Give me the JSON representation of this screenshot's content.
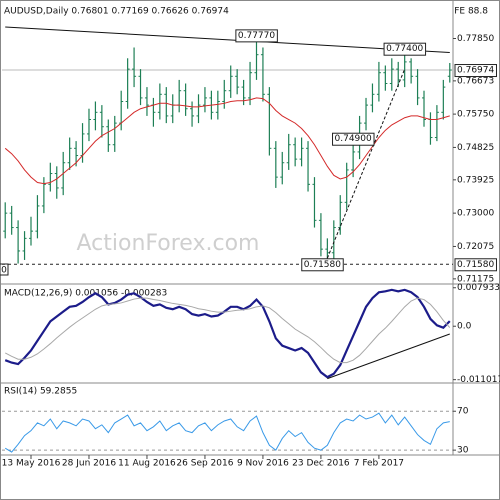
{
  "chart_data": [
    {
      "type": "ohlc",
      "title": "AUDUSD,Daily  0.76801 0.77169 0.76626 0.76974",
      "corner_label": "FE 88.8",
      "fib_label": "0",
      "watermark": "ActionForex.com",
      "color": "#1d7f55",
      "categories": [
        null,
        null,
        null,
        null,
        "13 May 2016",
        null,
        null,
        null,
        null,
        null,
        null,
        null,
        null,
        "28 Jun 2016",
        null,
        null,
        null,
        null,
        null,
        null,
        null,
        null,
        "11 Aug 2016",
        null,
        null,
        null,
        null,
        null,
        null,
        null,
        null,
        "26 Sep 2016",
        null,
        null,
        null,
        null,
        null,
        null,
        null,
        null,
        "9 Nov 2016",
        null,
        null,
        null,
        null,
        null,
        null,
        null,
        null,
        "23 Dec 2016",
        null,
        null,
        null,
        null,
        null,
        null,
        null,
        null,
        "7 Feb 2017",
        null,
        null,
        null,
        null,
        null,
        null,
        null,
        null,
        null,
        null,
        null
      ],
      "open": [
        0.725,
        0.73,
        0.726,
        0.7195,
        0.723,
        0.725,
        0.732,
        0.738,
        0.741,
        0.737,
        0.744,
        0.748,
        0.746,
        0.752,
        0.756,
        0.758,
        0.754,
        0.749,
        0.755,
        0.761,
        0.77,
        0.768,
        0.762,
        0.76,
        0.758,
        0.763,
        0.757,
        0.76,
        0.764,
        0.759,
        0.757,
        0.76,
        0.762,
        0.758,
        0.761,
        0.764,
        0.768,
        0.765,
        0.762,
        0.769,
        0.774,
        0.763,
        0.748,
        0.74,
        0.744,
        0.749,
        0.745,
        0.748,
        0.738,
        0.728,
        0.72,
        0.719,
        0.726,
        0.733,
        0.742,
        0.747,
        0.755,
        0.76,
        0.763,
        0.769,
        0.766,
        0.77,
        0.767,
        0.772,
        0.768,
        0.762,
        0.756,
        0.751,
        0.758,
        0.76801
      ],
      "high": [
        0.733,
        0.732,
        0.728,
        0.725,
        0.729,
        0.735,
        0.74,
        0.744,
        0.743,
        0.747,
        0.751,
        0.75,
        0.755,
        0.759,
        0.761,
        0.76,
        0.756,
        0.757,
        0.764,
        0.773,
        0.776,
        0.77,
        0.765,
        0.762,
        0.766,
        0.765,
        0.763,
        0.767,
        0.766,
        0.761,
        0.763,
        0.765,
        0.764,
        0.764,
        0.767,
        0.771,
        0.77,
        0.767,
        0.772,
        0.7777,
        0.776,
        0.765,
        0.75,
        0.747,
        0.752,
        0.751,
        0.751,
        0.75,
        0.74,
        0.73,
        0.723,
        0.728,
        0.735,
        0.744,
        0.749,
        0.757,
        0.762,
        0.766,
        0.772,
        0.771,
        0.773,
        0.772,
        0.774,
        0.773,
        0.77,
        0.764,
        0.758,
        0.76,
        0.767,
        0.77169
      ],
      "low": [
        0.723,
        0.724,
        0.716,
        0.717,
        0.721,
        0.723,
        0.73,
        0.736,
        0.734,
        0.735,
        0.742,
        0.743,
        0.744,
        0.75,
        0.753,
        0.751,
        0.747,
        0.747,
        0.753,
        0.759,
        0.765,
        0.76,
        0.757,
        0.754,
        0.756,
        0.755,
        0.755,
        0.758,
        0.757,
        0.754,
        0.755,
        0.758,
        0.756,
        0.756,
        0.759,
        0.762,
        0.763,
        0.76,
        0.76,
        0.767,
        0.761,
        0.746,
        0.737,
        0.738,
        0.742,
        0.743,
        0.743,
        0.736,
        0.726,
        0.718,
        0.7158,
        0.717,
        0.724,
        0.731,
        0.74,
        0.745,
        0.753,
        0.758,
        0.761,
        0.764,
        0.764,
        0.765,
        0.765,
        0.766,
        0.76,
        0.754,
        0.749,
        0.75,
        0.756,
        0.76626
      ],
      "close": [
        0.73,
        0.726,
        0.7195,
        0.723,
        0.725,
        0.732,
        0.738,
        0.741,
        0.737,
        0.744,
        0.748,
        0.746,
        0.752,
        0.756,
        0.758,
        0.754,
        0.749,
        0.755,
        0.761,
        0.77,
        0.768,
        0.762,
        0.76,
        0.758,
        0.763,
        0.757,
        0.76,
        0.764,
        0.759,
        0.757,
        0.76,
        0.762,
        0.758,
        0.761,
        0.764,
        0.768,
        0.765,
        0.762,
        0.769,
        0.774,
        0.763,
        0.748,
        0.74,
        0.744,
        0.749,
        0.745,
        0.748,
        0.738,
        0.728,
        0.72,
        0.719,
        0.726,
        0.733,
        0.742,
        0.747,
        0.755,
        0.76,
        0.763,
        0.769,
        0.766,
        0.77,
        0.767,
        0.772,
        0.768,
        0.762,
        0.756,
        0.751,
        0.758,
        0.765,
        0.76974
      ],
      "ma": {
        "color": "#d42a2a",
        "values": [
          0.748,
          0.7465,
          0.7445,
          0.742,
          0.74,
          0.7385,
          0.7382,
          0.7385,
          0.7395,
          0.741,
          0.7425,
          0.744,
          0.746,
          0.748,
          0.75,
          0.7515,
          0.7525,
          0.7535,
          0.755,
          0.7565,
          0.758,
          0.759,
          0.7595,
          0.76,
          0.7605,
          0.7605,
          0.76,
          0.76,
          0.7598,
          0.7595,
          0.7595,
          0.7598,
          0.76,
          0.7602,
          0.7605,
          0.761,
          0.7612,
          0.7612,
          0.7615,
          0.762,
          0.7618,
          0.7605,
          0.7585,
          0.757,
          0.756,
          0.755,
          0.7535,
          0.7515,
          0.749,
          0.746,
          0.743,
          0.7405,
          0.7395,
          0.74,
          0.7415,
          0.7435,
          0.746,
          0.7485,
          0.751,
          0.753,
          0.7545,
          0.7555,
          0.7565,
          0.757,
          0.757,
          0.7565,
          0.756,
          0.756,
          0.7565,
          0.757
        ]
      },
      "ylim": [
        0.7106,
        0.7878
      ],
      "yticks": [
        {
          "value": 0.7785,
          "label": "0.77850"
        },
        {
          "value": 0.76673,
          "label": "0.76673"
        },
        {
          "value": 0.7575,
          "label": "0.75750"
        },
        {
          "value": 0.74825,
          "label": "0.74825"
        },
        {
          "value": 0.73925,
          "label": "0.73925"
        },
        {
          "value": 0.73,
          "label": "0.73000"
        },
        {
          "value": 0.72075,
          "label": "0.72075"
        },
        {
          "value": 0.71175,
          "label": "0.71175"
        }
      ],
      "last_price": {
        "value": 0.76974,
        "label": "0.76974"
      },
      "level": {
        "value": 0.7158,
        "label": "0.71580"
      },
      "annotations": [
        {
          "value": 0.7777,
          "label": "0.77770"
        },
        {
          "value": 0.774,
          "label": "0.77400"
        },
        {
          "value": 0.749,
          "label": "0.74900"
        }
      ],
      "trendlines": [
        {
          "x": [
            0,
            69
          ],
          "y": [
            0.7817,
            0.7746
          ],
          "dashed": false
        },
        {
          "x": [
            50,
            62
          ],
          "y": [
            0.7175,
            0.77
          ],
          "dashed": true
        }
      ]
    },
    {
      "type": "macd",
      "title": "MACD(12,26,9) 0.001056 -0.000283",
      "series": [
        {
          "color": "#1c1c8a",
          "values": [
            -0.007,
            -0.0075,
            -0.0078,
            -0.0065,
            -0.005,
            -0.003,
            -0.001,
            0.001,
            0.002,
            0.003,
            0.004,
            0.0042,
            0.005,
            0.006,
            0.0068,
            0.006,
            0.0045,
            0.0048,
            0.0055,
            0.0065,
            0.0068,
            0.006,
            0.005,
            0.0042,
            0.0045,
            0.0038,
            0.0035,
            0.004,
            0.0035,
            0.0025,
            0.0022,
            0.0025,
            0.002,
            0.0022,
            0.003,
            0.004,
            0.004,
            0.0035,
            0.0042,
            0.0055,
            0.004,
            0.001,
            -0.0025,
            -0.004,
            -0.0045,
            -0.005,
            -0.0045,
            -0.0055,
            -0.0075,
            -0.0095,
            -0.0105,
            -0.0098,
            -0.008,
            -0.005,
            -0.002,
            0.001,
            0.004,
            0.0058,
            0.007,
            0.0072,
            0.0075,
            0.0072,
            0.0075,
            0.007,
            0.006,
            0.004,
            0.0015,
            0.0002,
            -0.0003,
            0.001056
          ]
        },
        {
          "color": "#a8a8a8",
          "values": [
            -0.0055,
            -0.0062,
            -0.0068,
            -0.0068,
            -0.0064,
            -0.0057,
            -0.0047,
            -0.0036,
            -0.0024,
            -0.0013,
            -0.0002,
            0.0008,
            0.0017,
            0.0026,
            0.0035,
            0.0042,
            0.0045,
            0.0046,
            0.0048,
            0.0052,
            0.0056,
            0.0058,
            0.0058,
            0.0055,
            0.0053,
            0.005,
            0.0047,
            0.0045,
            0.0043,
            0.004,
            0.0036,
            0.0034,
            0.0031,
            0.0029,
            0.0029,
            0.0031,
            0.0033,
            0.0034,
            0.0036,
            0.004,
            0.0042,
            0.0038,
            0.0028,
            0.0016,
            0.0005,
            -0.0006,
            -0.0014,
            -0.0022,
            -0.0032,
            -0.0044,
            -0.0057,
            -0.0068,
            -0.0075,
            -0.0075,
            -0.007,
            -0.006,
            -0.0046,
            -0.0031,
            -0.0016,
            -0.0004,
            0.001,
            0.0025,
            0.004,
            0.0052,
            0.0058,
            0.0055,
            0.0045,
            0.003,
            0.0012,
            -0.000283
          ]
        }
      ],
      "ylim": [
        -0.0115,
        0.0085
      ],
      "yticks": [
        0.007933,
        {
          "value": 0,
          "label": "0.0"
        },
        -0.011017
      ],
      "trendlines": [
        {
          "x": [
            50,
            69
          ],
          "y": [
            -0.0108,
            -0.0016
          ],
          "dashed": false
        }
      ]
    },
    {
      "type": "rsi",
      "title": "RSI(14) 59.2855",
      "color": "#3a9ae8",
      "values": [
        32,
        28,
        36,
        45,
        50,
        58,
        55,
        62,
        52,
        60,
        58,
        55,
        62,
        60,
        52,
        56,
        48,
        58,
        62,
        66,
        55,
        58,
        50,
        54,
        60,
        50,
        55,
        58,
        50,
        48,
        55,
        58,
        50,
        56,
        60,
        62,
        54,
        50,
        60,
        65,
        48,
        35,
        30,
        42,
        50,
        44,
        48,
        38,
        32,
        30,
        35,
        48,
        58,
        62,
        60,
        66,
        62,
        64,
        68,
        58,
        66,
        56,
        64,
        55,
        46,
        40,
        36,
        52,
        58,
        59.2855
      ],
      "ylim": [
        25,
        98
      ],
      "yticks": [
        70,
        30
      ],
      "grid": true
    }
  ]
}
